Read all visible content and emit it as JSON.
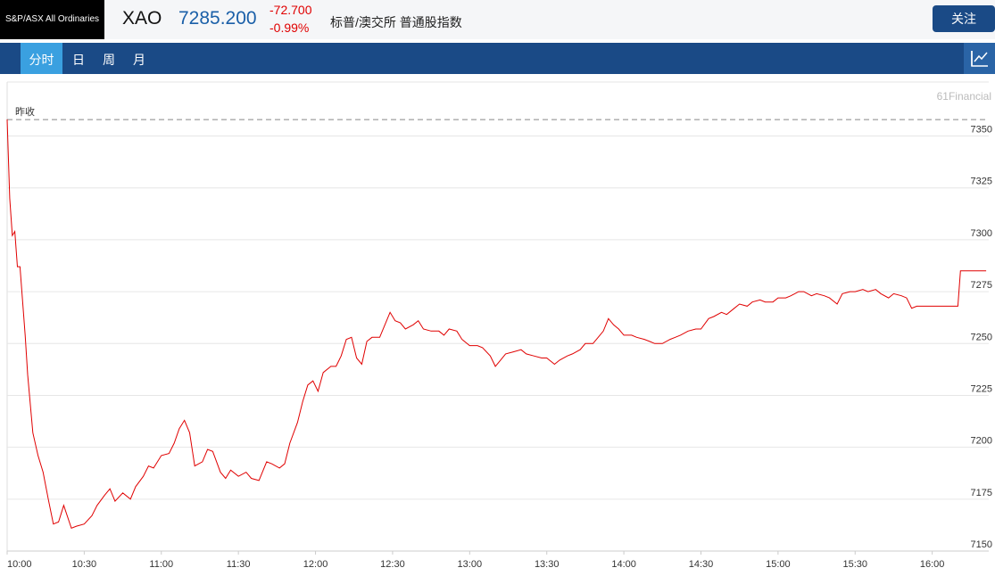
{
  "header": {
    "index_name": "S&P/ASX All Ordinaries",
    "symbol": "XAO",
    "price": "7285.200",
    "change": "-72.700",
    "change_pct": "-0.99%",
    "description": "标普/澳交所 普通股指数",
    "follow_button": "关注"
  },
  "tabs": [
    "分时",
    "日",
    "周",
    "月"
  ],
  "active_tab": 0,
  "chart_data": {
    "type": "line",
    "color": "#e00000",
    "grid": true,
    "watermark": "61Financial",
    "prev_close_label": "昨收",
    "prev_close": 7357.9,
    "xlim": [
      "10:00",
      "16:22"
    ],
    "xticks": [
      "10:00",
      "10:30",
      "11:00",
      "11:30",
      "12:00",
      "12:30",
      "13:00",
      "13:30",
      "14:00",
      "14:30",
      "15:00",
      "15:30",
      "16:00"
    ],
    "ylim": [
      7150,
      7376
    ],
    "yticks": [
      7150,
      7175,
      7200,
      7225,
      7250,
      7275,
      7300,
      7325,
      7350
    ],
    "x": [
      "10:00",
      "10:01",
      "10:02",
      "10:03",
      "10:04",
      "10:05",
      "10:07",
      "10:08",
      "10:10",
      "10:12",
      "10:14",
      "10:16",
      "10:18",
      "10:20",
      "10:22",
      "10:25",
      "10:27",
      "10:30",
      "10:33",
      "10:35",
      "10:38",
      "10:40",
      "10:42",
      "10:45",
      "10:48",
      "10:50",
      "10:53",
      "10:55",
      "10:57",
      "11:00",
      "11:03",
      "11:05",
      "11:07",
      "11:09",
      "11:11",
      "11:13",
      "11:16",
      "11:18",
      "11:20",
      "11:23",
      "11:25",
      "11:27",
      "11:30",
      "11:33",
      "11:35",
      "11:38",
      "11:41",
      "11:43",
      "11:46",
      "11:48",
      "11:50",
      "11:53",
      "11:55",
      "11:57",
      "11:59",
      "12:01",
      "12:03",
      "12:06",
      "12:08",
      "12:10",
      "12:12",
      "12:14",
      "12:16",
      "12:18",
      "12:20",
      "12:22",
      "12:25",
      "12:27",
      "12:29",
      "12:31",
      "12:33",
      "12:35",
      "12:38",
      "12:40",
      "12:42",
      "12:45",
      "12:48",
      "12:50",
      "12:52",
      "12:55",
      "12:57",
      "13:00",
      "13:03",
      "13:05",
      "13:08",
      "13:10",
      "13:12",
      "13:14",
      "13:17",
      "13:20",
      "13:22",
      "13:25",
      "13:28",
      "13:30",
      "13:33",
      "13:35",
      "13:38",
      "13:40",
      "13:43",
      "13:45",
      "13:48",
      "13:50",
      "13:52",
      "13:54",
      "13:56",
      "13:58",
      "14:00",
      "14:03",
      "14:05",
      "14:08",
      "14:10",
      "14:12",
      "14:15",
      "14:18",
      "14:20",
      "14:22",
      "14:25",
      "14:28",
      "14:30",
      "14:33",
      "14:35",
      "14:38",
      "14:40",
      "14:43",
      "14:45",
      "14:48",
      "14:50",
      "14:53",
      "14:55",
      "14:58",
      "15:00",
      "15:03",
      "15:05",
      "15:08",
      "15:10",
      "15:13",
      "15:15",
      "15:18",
      "15:20",
      "15:23",
      "15:25",
      "15:28",
      "15:30",
      "15:33",
      "15:35",
      "15:38",
      "15:40",
      "15:43",
      "15:45",
      "15:48",
      "15:50",
      "15:52",
      "15:54",
      "15:57",
      "16:00",
      "16:10",
      "16:11",
      "16:21"
    ],
    "values": [
      7358,
      7320,
      7302,
      7304,
      7287,
      7287,
      7254,
      7235,
      7207,
      7196,
      7188,
      7175,
      7163,
      7164,
      7172,
      7161,
      7162,
      7163,
      7167,
      7172,
      7177,
      7180,
      7174,
      7178,
      7175,
      7181,
      7186,
      7191,
      7190,
      7196,
      7197,
      7202,
      7209,
      7213,
      7207,
      7191,
      7193,
      7199,
      7198,
      7188,
      7185,
      7189,
      7186,
      7188,
      7185,
      7184,
      7193,
      7192,
      7190,
      7192,
      7202,
      7212,
      7222,
      7230,
      7232,
      7227,
      7236,
      7239,
      7239,
      7244,
      7252,
      7253,
      7243,
      7240,
      7251,
      7253,
      7253,
      7259,
      7265,
      7261,
      7260,
      7257,
      7259,
      7261,
      7257,
      7256,
      7256,
      7254,
      7257,
      7256,
      7252,
      7249,
      7249,
      7248,
      7244,
      7239,
      7242,
      7245,
      7246,
      7247,
      7245,
      7244,
      7243,
      7243,
      7240,
      7242,
      7244,
      7245,
      7247,
      7250,
      7250,
      7253,
      7256,
      7262,
      7259,
      7257,
      7254,
      7254,
      7253,
      7252,
      7251,
      7250,
      7250,
      7252,
      7253,
      7254,
      7256,
      7257,
      7257,
      7262,
      7263,
      7265,
      7264,
      7267,
      7269,
      7268,
      7270,
      7271,
      7270,
      7270,
      7272,
      7272,
      7273,
      7275,
      7275,
      7273,
      7274,
      7273,
      7272,
      7269,
      7274,
      7275,
      7275,
      7276,
      7275,
      7276,
      7274,
      7272,
      7274,
      7273,
      7272,
      7267,
      7268,
      7268,
      7268,
      7268,
      7285,
      7285
    ]
  }
}
